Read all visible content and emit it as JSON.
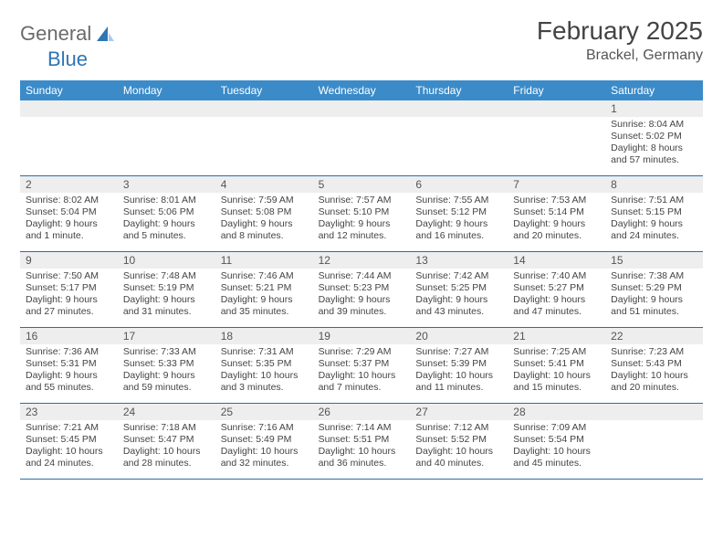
{
  "brand": {
    "word1": "General",
    "word2": "Blue"
  },
  "title": "February 2025",
  "location": "Brackel, Germany",
  "colors": {
    "header_bg": "#3b8bc9",
    "header_text": "#ffffff",
    "daynum_bg": "#eeeeee",
    "week_border": "#2e6da4",
    "brand_gray": "#6b6b6b",
    "brand_blue": "#2e75b6",
    "text": "#444444"
  },
  "dayNames": [
    "Sunday",
    "Monday",
    "Tuesday",
    "Wednesday",
    "Thursday",
    "Friday",
    "Saturday"
  ],
  "weeks": [
    [
      {
        "n": ""
      },
      {
        "n": ""
      },
      {
        "n": ""
      },
      {
        "n": ""
      },
      {
        "n": ""
      },
      {
        "n": ""
      },
      {
        "n": "1",
        "sr": "Sunrise: 8:04 AM",
        "ss": "Sunset: 5:02 PM",
        "dl1": "Daylight: 8 hours",
        "dl2": "and 57 minutes."
      }
    ],
    [
      {
        "n": "2",
        "sr": "Sunrise: 8:02 AM",
        "ss": "Sunset: 5:04 PM",
        "dl1": "Daylight: 9 hours",
        "dl2": "and 1 minute."
      },
      {
        "n": "3",
        "sr": "Sunrise: 8:01 AM",
        "ss": "Sunset: 5:06 PM",
        "dl1": "Daylight: 9 hours",
        "dl2": "and 5 minutes."
      },
      {
        "n": "4",
        "sr": "Sunrise: 7:59 AM",
        "ss": "Sunset: 5:08 PM",
        "dl1": "Daylight: 9 hours",
        "dl2": "and 8 minutes."
      },
      {
        "n": "5",
        "sr": "Sunrise: 7:57 AM",
        "ss": "Sunset: 5:10 PM",
        "dl1": "Daylight: 9 hours",
        "dl2": "and 12 minutes."
      },
      {
        "n": "6",
        "sr": "Sunrise: 7:55 AM",
        "ss": "Sunset: 5:12 PM",
        "dl1": "Daylight: 9 hours",
        "dl2": "and 16 minutes."
      },
      {
        "n": "7",
        "sr": "Sunrise: 7:53 AM",
        "ss": "Sunset: 5:14 PM",
        "dl1": "Daylight: 9 hours",
        "dl2": "and 20 minutes."
      },
      {
        "n": "8",
        "sr": "Sunrise: 7:51 AM",
        "ss": "Sunset: 5:15 PM",
        "dl1": "Daylight: 9 hours",
        "dl2": "and 24 minutes."
      }
    ],
    [
      {
        "n": "9",
        "sr": "Sunrise: 7:50 AM",
        "ss": "Sunset: 5:17 PM",
        "dl1": "Daylight: 9 hours",
        "dl2": "and 27 minutes."
      },
      {
        "n": "10",
        "sr": "Sunrise: 7:48 AM",
        "ss": "Sunset: 5:19 PM",
        "dl1": "Daylight: 9 hours",
        "dl2": "and 31 minutes."
      },
      {
        "n": "11",
        "sr": "Sunrise: 7:46 AM",
        "ss": "Sunset: 5:21 PM",
        "dl1": "Daylight: 9 hours",
        "dl2": "and 35 minutes."
      },
      {
        "n": "12",
        "sr": "Sunrise: 7:44 AM",
        "ss": "Sunset: 5:23 PM",
        "dl1": "Daylight: 9 hours",
        "dl2": "and 39 minutes."
      },
      {
        "n": "13",
        "sr": "Sunrise: 7:42 AM",
        "ss": "Sunset: 5:25 PM",
        "dl1": "Daylight: 9 hours",
        "dl2": "and 43 minutes."
      },
      {
        "n": "14",
        "sr": "Sunrise: 7:40 AM",
        "ss": "Sunset: 5:27 PM",
        "dl1": "Daylight: 9 hours",
        "dl2": "and 47 minutes."
      },
      {
        "n": "15",
        "sr": "Sunrise: 7:38 AM",
        "ss": "Sunset: 5:29 PM",
        "dl1": "Daylight: 9 hours",
        "dl2": "and 51 minutes."
      }
    ],
    [
      {
        "n": "16",
        "sr": "Sunrise: 7:36 AM",
        "ss": "Sunset: 5:31 PM",
        "dl1": "Daylight: 9 hours",
        "dl2": "and 55 minutes."
      },
      {
        "n": "17",
        "sr": "Sunrise: 7:33 AM",
        "ss": "Sunset: 5:33 PM",
        "dl1": "Daylight: 9 hours",
        "dl2": "and 59 minutes."
      },
      {
        "n": "18",
        "sr": "Sunrise: 7:31 AM",
        "ss": "Sunset: 5:35 PM",
        "dl1": "Daylight: 10 hours",
        "dl2": "and 3 minutes."
      },
      {
        "n": "19",
        "sr": "Sunrise: 7:29 AM",
        "ss": "Sunset: 5:37 PM",
        "dl1": "Daylight: 10 hours",
        "dl2": "and 7 minutes."
      },
      {
        "n": "20",
        "sr": "Sunrise: 7:27 AM",
        "ss": "Sunset: 5:39 PM",
        "dl1": "Daylight: 10 hours",
        "dl2": "and 11 minutes."
      },
      {
        "n": "21",
        "sr": "Sunrise: 7:25 AM",
        "ss": "Sunset: 5:41 PM",
        "dl1": "Daylight: 10 hours",
        "dl2": "and 15 minutes."
      },
      {
        "n": "22",
        "sr": "Sunrise: 7:23 AM",
        "ss": "Sunset: 5:43 PM",
        "dl1": "Daylight: 10 hours",
        "dl2": "and 20 minutes."
      }
    ],
    [
      {
        "n": "23",
        "sr": "Sunrise: 7:21 AM",
        "ss": "Sunset: 5:45 PM",
        "dl1": "Daylight: 10 hours",
        "dl2": "and 24 minutes."
      },
      {
        "n": "24",
        "sr": "Sunrise: 7:18 AM",
        "ss": "Sunset: 5:47 PM",
        "dl1": "Daylight: 10 hours",
        "dl2": "and 28 minutes."
      },
      {
        "n": "25",
        "sr": "Sunrise: 7:16 AM",
        "ss": "Sunset: 5:49 PM",
        "dl1": "Daylight: 10 hours",
        "dl2": "and 32 minutes."
      },
      {
        "n": "26",
        "sr": "Sunrise: 7:14 AM",
        "ss": "Sunset: 5:51 PM",
        "dl1": "Daylight: 10 hours",
        "dl2": "and 36 minutes."
      },
      {
        "n": "27",
        "sr": "Sunrise: 7:12 AM",
        "ss": "Sunset: 5:52 PM",
        "dl1": "Daylight: 10 hours",
        "dl2": "and 40 minutes."
      },
      {
        "n": "28",
        "sr": "Sunrise: 7:09 AM",
        "ss": "Sunset: 5:54 PM",
        "dl1": "Daylight: 10 hours",
        "dl2": "and 45 minutes."
      },
      {
        "n": ""
      }
    ]
  ]
}
